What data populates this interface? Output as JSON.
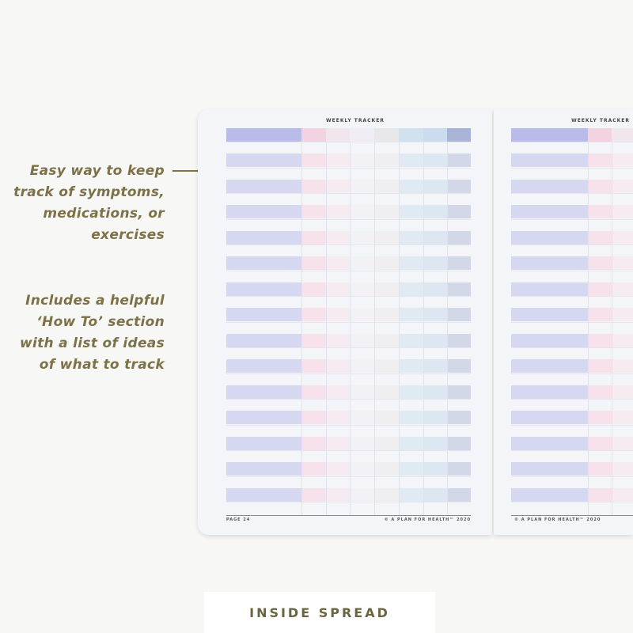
{
  "callouts": [
    {
      "lines": [
        "Easy way to keep",
        "track of symptoms,",
        "medications, or",
        "exercises"
      ]
    },
    {
      "lines": [
        "Includes a helpful",
        "‘How To’ section",
        "with a list of ideas",
        "of what to track"
      ]
    }
  ],
  "left_page": {
    "title": "WEEKLY TRACKER",
    "page_number": "PAGE 24",
    "copyright": "© A PLAN FOR HEALTH™ 2020"
  },
  "right_page": {
    "title": "WEEKLY TRACKER",
    "copyright": "© A PLAN FOR HEALTH™ 2020"
  },
  "tracker_rows": 14,
  "column_colors": {
    "header": [
      "#b9bce9",
      "#f3d2e1",
      "#f2e6ee",
      "#f0eef4",
      "#e8e8eb",
      "#d2e1ef",
      "#cbdcee",
      "#a9b3d8"
    ],
    "row": [
      "#d6d7f1",
      "#f7e2eb",
      "#f5ebf1",
      "#f2f1f6",
      "#efeff2",
      "#e0eaf3",
      "#dce7f2",
      "#d3d8e8"
    ]
  },
  "text_color": "#7d7148",
  "badge": {
    "label": "INSIDE SPREAD"
  }
}
